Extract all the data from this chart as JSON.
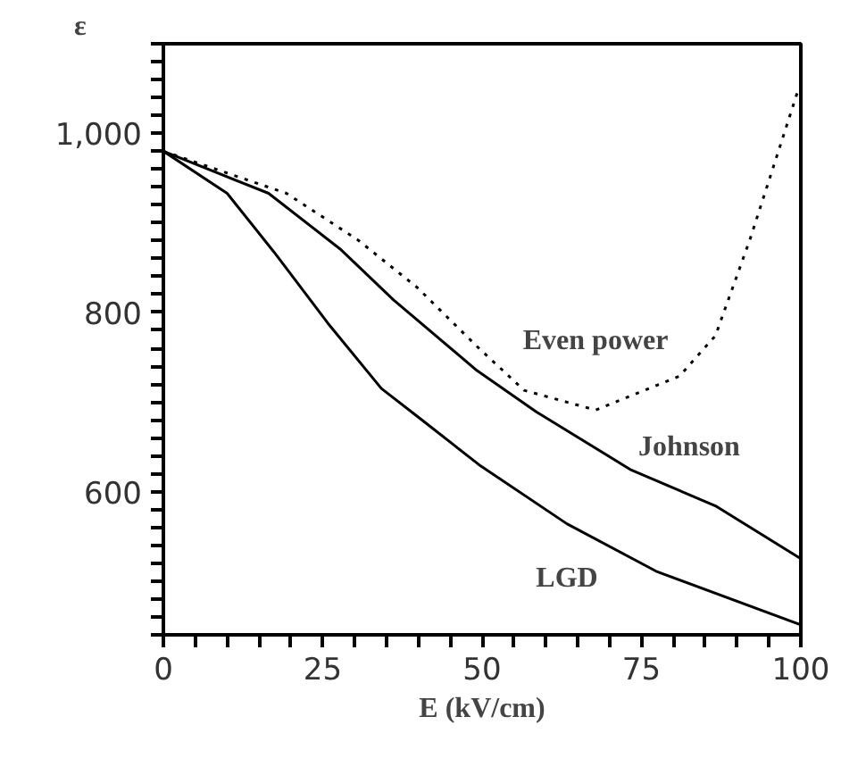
{
  "chart_data": {
    "type": "line",
    "ylabel": "ε",
    "xlabel": "E (kV/cm)",
    "xlim": [
      0,
      100
    ],
    "ylim": [
      440,
      1100
    ],
    "xticks": [
      0,
      {
        "value": 5,
        "label": null
      },
      {
        "value": 10,
        "label": null
      },
      {
        "value": 15,
        "label": null
      },
      {
        "value": 20,
        "label": null
      },
      25,
      {
        "value": 30,
        "label": null
      },
      {
        "value": 35,
        "label": null
      },
      {
        "value": 40,
        "label": null
      },
      {
        "value": 45,
        "label": null
      },
      50,
      {
        "value": 55,
        "label": null
      },
      {
        "value": 60,
        "label": null
      },
      {
        "value": 65,
        "label": null
      },
      {
        "value": 70,
        "label": null
      },
      75,
      {
        "value": 80,
        "label": null
      },
      {
        "value": 85,
        "label": null
      },
      {
        "value": 90,
        "label": null
      },
      {
        "value": 95,
        "label": null
      },
      100
    ],
    "yticks": [
      {
        "value": 440,
        "label": null
      },
      {
        "value": 460,
        "label": null
      },
      {
        "value": 480,
        "label": null
      },
      {
        "value": 500,
        "label": null
      },
      {
        "value": 520,
        "label": null
      },
      {
        "value": 540,
        "label": null
      },
      {
        "value": 560,
        "label": null
      },
      {
        "value": 580,
        "label": null
      },
      600,
      {
        "value": 620,
        "label": null
      },
      {
        "value": 640,
        "label": null
      },
      {
        "value": 660,
        "label": null
      },
      {
        "value": 680,
        "label": null
      },
      {
        "value": 700,
        "label": null
      },
      {
        "value": 720,
        "label": null
      },
      {
        "value": 740,
        "label": null
      },
      {
        "value": 760,
        "label": null
      },
      {
        "value": 780,
        "label": null
      },
      800,
      {
        "value": 820,
        "label": null
      },
      {
        "value": 840,
        "label": null
      },
      {
        "value": 860,
        "label": null
      },
      {
        "value": 880,
        "label": null
      },
      {
        "value": 900,
        "label": null
      },
      {
        "value": 920,
        "label": null
      },
      {
        "value": 940,
        "label": null
      },
      {
        "value": 960,
        "label": null
      },
      {
        "value": 980,
        "label": null
      },
      {
        "value": 1000,
        "label": "1,000"
      },
      {
        "value": 1020,
        "label": null
      },
      {
        "value": 1040,
        "label": null
      },
      {
        "value": 1060,
        "label": null
      },
      {
        "value": 1080,
        "label": null
      },
      {
        "value": 1100,
        "label": null
      }
    ],
    "grid": false,
    "series": [
      {
        "name": "Even power",
        "color": "#000000",
        "line_style": "dotted",
        "x": [
          0,
          19.3,
          30.5,
          39.8,
          49.2,
          56.6,
          67.8,
          81,
          86.6,
          92,
          99.7
        ],
        "values": [
          980,
          933,
          881,
          828,
          762,
          713,
          691,
          729,
          774,
          881,
          1051
        ]
      },
      {
        "name": "Johnson",
        "color": "#000000",
        "line_style": "solid",
        "x": [
          0,
          16.5,
          27.7,
          36.1,
          49.2,
          58.5,
          73.4,
          86.6,
          100
        ],
        "values": [
          980,
          933,
          871,
          814,
          735,
          689,
          624,
          584,
          525
        ]
      },
      {
        "name": "LGD",
        "color": "#000000",
        "line_style": "solid",
        "x": [
          0,
          10,
          17.4,
          25.8,
          34.2,
          40,
          49.5,
          63.3,
          77.3,
          100
        ],
        "values": [
          980,
          933,
          867,
          788,
          715,
          683,
          630,
          564,
          511,
          451
        ]
      }
    ]
  }
}
